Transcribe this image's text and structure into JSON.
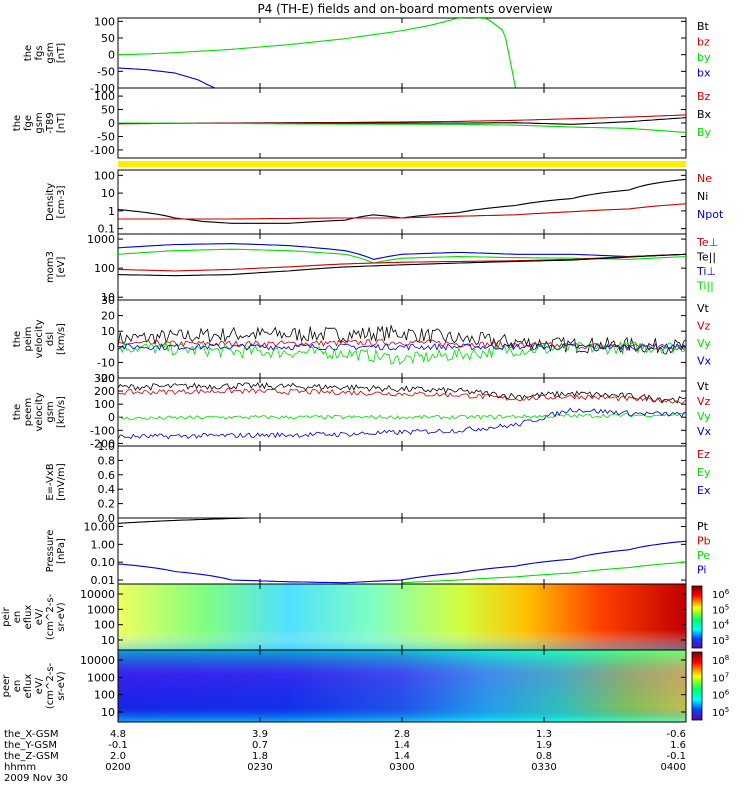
{
  "title": "P4 (TH-E) fields and on-board moments overview",
  "colors": {
    "black": "#000000",
    "red": "#cc0000",
    "green": "#00dd00",
    "blue": "#0000cc",
    "yellow": "#ffee00"
  },
  "chart_data": [
    {
      "type": "line",
      "ylabel": [
        "the",
        "fgs",
        "gsm",
        "[nT]"
      ],
      "yticks": [
        "100",
        "50",
        "0",
        "-50",
        "-100"
      ],
      "ylim": [
        -100,
        110
      ],
      "legend": [
        {
          "name": "Bt",
          "color": "black"
        },
        {
          "name": "bz",
          "color": "red"
        },
        {
          "name": "by",
          "color": "green"
        },
        {
          "name": "bx",
          "color": "blue"
        }
      ],
      "series": [
        {
          "name": "by",
          "color": "green",
          "x": [
            0,
            0.05,
            0.1,
            0.2,
            0.3,
            0.4,
            0.5,
            0.55,
            0.6,
            0.62,
            0.65,
            0.68,
            0.7
          ],
          "y": [
            0,
            2,
            6,
            16,
            30,
            48,
            72,
            88,
            110,
            112,
            108,
            70,
            -100
          ]
        },
        {
          "name": "bx",
          "color": "blue",
          "x": [
            0,
            0.05,
            0.1,
            0.14,
            0.17
          ],
          "y": [
            -40,
            -45,
            -55,
            -75,
            -100
          ]
        }
      ]
    },
    {
      "type": "line",
      "ylabel": [
        "the",
        "fge",
        "gsm",
        "-T89",
        "[nT]"
      ],
      "yticks": [
        "100",
        "50",
        "0",
        "-50",
        "-100"
      ],
      "ylim": [
        -130,
        130
      ],
      "legend": [
        {
          "name": "Bz",
          "color": "red"
        },
        {
          "name": "Bx",
          "color": "black"
        },
        {
          "name": "By",
          "color": "green"
        }
      ],
      "series": [
        {
          "name": "Bz",
          "color": "red",
          "x": [
            0,
            0.2,
            0.4,
            0.5,
            0.6,
            0.7,
            0.8,
            0.9,
            1.0
          ],
          "y": [
            -3,
            0,
            2,
            4,
            6,
            10,
            16,
            22,
            30
          ]
        },
        {
          "name": "Bx",
          "color": "black",
          "x": [
            0,
            0.2,
            0.4,
            0.6,
            0.7,
            0.8,
            0.9,
            1.0
          ],
          "y": [
            -2,
            -1,
            0,
            0,
            1,
            -5,
            5,
            20
          ]
        },
        {
          "name": "By",
          "color": "green",
          "x": [
            0,
            0.2,
            0.4,
            0.6,
            0.7,
            0.8,
            0.9,
            1.0
          ],
          "y": [
            0,
            -2,
            -4,
            -5,
            -8,
            -15,
            -20,
            -35
          ]
        }
      ]
    },
    {
      "type": "line",
      "yscale": "log",
      "ylabel": [
        "Density",
        "[cm-3]"
      ],
      "yticks": [
        "100",
        "10",
        "1",
        "0.1"
      ],
      "ylim": [
        0.05,
        200
      ],
      "legend": [
        {
          "name": "Ne",
          "color": "red"
        },
        {
          "name": "Ni",
          "color": "black"
        },
        {
          "name": "Npot",
          "color": "blue"
        }
      ],
      "series": [
        {
          "name": "Ni",
          "color": "black",
          "x": [
            0,
            0.05,
            0.1,
            0.15,
            0.2,
            0.3,
            0.4,
            0.45,
            0.5,
            0.6,
            0.7,
            0.8,
            0.9,
            1.0
          ],
          "y": [
            1.2,
            0.8,
            0.4,
            0.25,
            0.2,
            0.2,
            0.3,
            0.6,
            0.4,
            0.8,
            2.0,
            5.0,
            15,
            60
          ]
        },
        {
          "name": "Ne",
          "color": "red",
          "x": [
            0,
            0.2,
            0.4,
            0.5,
            0.6,
            0.7,
            0.8,
            0.9,
            1.0
          ],
          "y": [
            0.35,
            0.35,
            0.4,
            0.4,
            0.5,
            0.6,
            0.9,
            1.3,
            2.5
          ]
        }
      ]
    },
    {
      "type": "line",
      "yscale": "log",
      "ylabel": [
        "mom3",
        "[eV]"
      ],
      "yticks": [
        "1000",
        "100",
        "10"
      ],
      "ylim": [
        8,
        1500
      ],
      "legend": [
        {
          "name": "Te⊥",
          "color": "red"
        },
        {
          "name": "Te||",
          "color": "black"
        },
        {
          "name": "Ti⊥",
          "color": "blue"
        },
        {
          "name": "Ti||",
          "color": "green"
        }
      ],
      "series": [
        {
          "name": "Ti⊥",
          "color": "blue",
          "x": [
            0,
            0.1,
            0.2,
            0.3,
            0.4,
            0.45,
            0.5,
            0.6,
            0.7,
            0.8,
            0.9,
            1.0
          ],
          "y": [
            500,
            650,
            700,
            600,
            400,
            200,
            300,
            350,
            300,
            300,
            250,
            300
          ]
        },
        {
          "name": "Ti||",
          "color": "green",
          "x": [
            0,
            0.1,
            0.2,
            0.3,
            0.4,
            0.45,
            0.5,
            0.6,
            0.7,
            0.8,
            0.9,
            1.0
          ],
          "y": [
            300,
            400,
            450,
            400,
            300,
            150,
            220,
            250,
            230,
            220,
            200,
            250
          ]
        },
        {
          "name": "Te⊥",
          "color": "red",
          "x": [
            0,
            0.1,
            0.2,
            0.3,
            0.4,
            0.5,
            0.6,
            0.7,
            0.8,
            0.9,
            1.0
          ],
          "y": [
            90,
            80,
            90,
            110,
            140,
            160,
            170,
            180,
            200,
            250,
            300
          ]
        },
        {
          "name": "Te||",
          "color": "black",
          "x": [
            0,
            0.1,
            0.2,
            0.3,
            0.4,
            0.5,
            0.6,
            0.7,
            0.8,
            0.9,
            1.0
          ],
          "y": [
            60,
            55,
            60,
            80,
            110,
            130,
            150,
            170,
            190,
            240,
            300
          ]
        }
      ]
    },
    {
      "type": "line",
      "ylabel": [
        "the",
        "peim",
        "velocity",
        "dsl",
        "[km/s]"
      ],
      "yticks": [
        "30",
        "20",
        "10",
        "0",
        "-10",
        "-20"
      ],
      "ylim": [
        -20,
        30
      ],
      "legend": [
        {
          "name": "Vt",
          "color": "black"
        },
        {
          "name": "Vz",
          "color": "red"
        },
        {
          "name": "Vy",
          "color": "green"
        },
        {
          "name": "Vx",
          "color": "blue"
        }
      ],
      "series": [
        {
          "name": "Vt",
          "color": "black",
          "noise": 5,
          "x": [
            0,
            0.2,
            0.4,
            0.5,
            0.6,
            0.7,
            0.8,
            0.9,
            1.0
          ],
          "y": [
            5,
            8,
            8,
            9,
            5,
            3,
            1,
            1,
            0
          ]
        },
        {
          "name": "Vz",
          "color": "red",
          "noise": 2,
          "x": [
            0,
            0.3,
            0.5,
            0.7,
            1.0
          ],
          "y": [
            2,
            2,
            3,
            1,
            0
          ]
        },
        {
          "name": "Vy",
          "color": "green",
          "noise": 4,
          "x": [
            0,
            0.2,
            0.4,
            0.5,
            0.6,
            0.7,
            0.8,
            1.0
          ],
          "y": [
            0,
            -3,
            -4,
            -8,
            -5,
            -2,
            -1,
            0
          ]
        },
        {
          "name": "Vx",
          "color": "blue",
          "noise": 2,
          "x": [
            0,
            0.3,
            0.5,
            0.7,
            1.0
          ],
          "y": [
            0,
            0,
            0,
            0,
            0
          ]
        }
      ]
    },
    {
      "type": "line",
      "ylabel": [
        "the",
        "peem",
        "velocity",
        "gsm",
        "[km/s]"
      ],
      "yticks": [
        "300",
        "200",
        "100",
        "0",
        "-100",
        "-200"
      ],
      "ylim": [
        -220,
        300
      ],
      "legend": [
        {
          "name": "Vt",
          "color": "black"
        },
        {
          "name": "Vz",
          "color": "red"
        },
        {
          "name": "Vy",
          "color": "green"
        },
        {
          "name": "Vx",
          "color": "blue"
        }
      ],
      "series": [
        {
          "name": "Vt",
          "color": "black",
          "noise": 25,
          "x": [
            0,
            0.2,
            0.4,
            0.6,
            0.7,
            0.8,
            0.9,
            1.0
          ],
          "y": [
            230,
            240,
            230,
            200,
            160,
            180,
            160,
            130
          ]
        },
        {
          "name": "Vz",
          "color": "red",
          "noise": 20,
          "x": [
            0,
            0.2,
            0.4,
            0.6,
            0.7,
            0.8,
            0.9,
            1.0
          ],
          "y": [
            190,
            200,
            190,
            170,
            140,
            160,
            140,
            120
          ]
        },
        {
          "name": "Vy",
          "color": "green",
          "noise": 15,
          "x": [
            0,
            0.2,
            0.4,
            0.6,
            0.8,
            1.0
          ],
          "y": [
            -10,
            0,
            0,
            0,
            10,
            20
          ]
        },
        {
          "name": "Vx",
          "color": "blue",
          "noise": 20,
          "x": [
            0,
            0.2,
            0.4,
            0.6,
            0.7,
            0.8,
            0.9,
            1.0
          ],
          "y": [
            -150,
            -140,
            -130,
            -100,
            -60,
            60,
            30,
            20
          ]
        }
      ]
    },
    {
      "type": "line",
      "ylabel": [
        "E=-VxB",
        "[mV/m]"
      ],
      "yticks": [
        "1.0",
        "0.8",
        "0.6",
        "0.4",
        "0.2",
        "0.0"
      ],
      "ylim": [
        0,
        1
      ],
      "legend": [
        {
          "name": "Ez",
          "color": "red"
        },
        {
          "name": "Ey",
          "color": "green"
        },
        {
          "name": "Ex",
          "color": "blue"
        }
      ],
      "series": []
    },
    {
      "type": "line",
      "yscale": "log",
      "ylabel": [
        "Pressure",
        "[nPa]"
      ],
      "yticks": [
        "10.00",
        "1.00",
        "0.10",
        "0.01"
      ],
      "ylim": [
        0.006,
        30
      ],
      "legend": [
        {
          "name": "Pt",
          "color": "black"
        },
        {
          "name": "Pb",
          "color": "red"
        },
        {
          "name": "Pe",
          "color": "green"
        },
        {
          "name": "Pi",
          "color": "blue"
        }
      ],
      "series": [
        {
          "name": "Pt",
          "color": "black",
          "x": [
            0,
            0.1,
            0.2,
            0.23
          ],
          "y": [
            15,
            22,
            28,
            30
          ]
        },
        {
          "name": "Pi",
          "color": "blue",
          "x": [
            0,
            0.1,
            0.2,
            0.3,
            0.4,
            0.5,
            0.6,
            0.7,
            0.8,
            0.9,
            1.0
          ],
          "y": [
            0.08,
            0.03,
            0.01,
            0.008,
            0.007,
            0.01,
            0.025,
            0.06,
            0.15,
            0.5,
            1.5
          ]
        },
        {
          "name": "Pe",
          "color": "green",
          "x": [
            0.5,
            0.6,
            0.7,
            0.8,
            0.9,
            1.0
          ],
          "y": [
            0.007,
            0.01,
            0.015,
            0.025,
            0.05,
            0.1
          ]
        }
      ]
    },
    {
      "type": "heatmap",
      "ylabel": [
        "the",
        "peir",
        "en",
        "eflux",
        "eV/",
        "(cm^2-s-",
        "sr-eV)"
      ],
      "yticks": [
        "10000",
        "1000",
        "100",
        "10"
      ],
      "colorbar_ticks": [
        "10^6",
        "10^5",
        "10^4",
        "10^3"
      ]
    },
    {
      "type": "heatmap",
      "ylabel": [
        "the",
        "peer",
        "en",
        "eflux",
        "eV/",
        "(cm^2-s-",
        "sr-eV)"
      ],
      "yticks": [
        "10000",
        "1000",
        "100",
        "10"
      ],
      "colorbar_ticks": [
        "10^8",
        "10^7",
        "10^6",
        "10^5"
      ]
    }
  ],
  "ephemeris": {
    "rows": [
      {
        "label": "the_X-GSM",
        "values": [
          "4.8",
          "3.9",
          "2.8",
          "1.3",
          "-0.6"
        ]
      },
      {
        "label": "the_Y-GSM",
        "values": [
          "-0.1",
          "0.7",
          "1.4",
          "1.9",
          "1.6"
        ]
      },
      {
        "label": "the_Z-GSM",
        "values": [
          "2.0",
          "1.8",
          "1.4",
          "0.8",
          "-0.1"
        ]
      },
      {
        "label": "hhmm",
        "values": [
          "0200",
          "0230",
          "0300",
          "0330",
          "0400"
        ]
      }
    ],
    "date": "2009 Nov 30"
  }
}
